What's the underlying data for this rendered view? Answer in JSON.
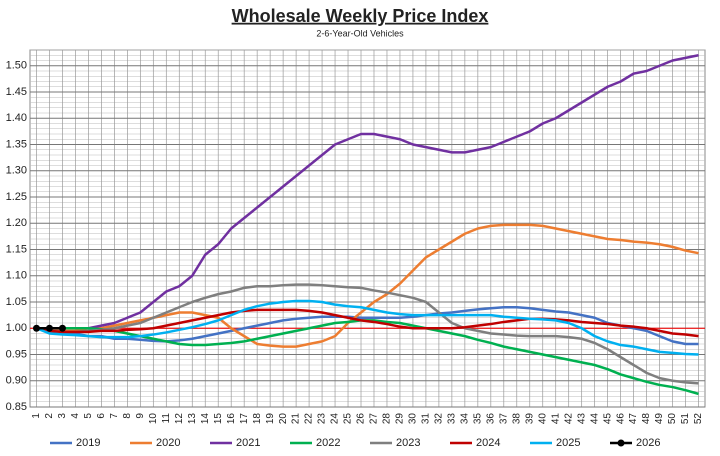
{
  "chart_data": {
    "type": "line",
    "title": "Wholesale Weekly Price Index",
    "subtitle": "2-6-Year-Old Vehicles",
    "x": [
      1,
      2,
      3,
      4,
      5,
      6,
      7,
      8,
      9,
      10,
      11,
      12,
      13,
      14,
      15,
      16,
      17,
      18,
      19,
      20,
      21,
      22,
      23,
      24,
      25,
      26,
      27,
      28,
      29,
      30,
      31,
      32,
      33,
      34,
      35,
      36,
      37,
      38,
      39,
      40,
      41,
      42,
      43,
      44,
      45,
      46,
      47,
      48,
      49,
      50,
      51,
      52
    ],
    "xlim": [
      0.5,
      52.5
    ],
    "xticks": [
      1,
      2,
      3,
      4,
      5,
      6,
      7,
      8,
      9,
      10,
      11,
      12,
      13,
      14,
      15,
      16,
      17,
      18,
      19,
      20,
      21,
      22,
      23,
      24,
      25,
      26,
      27,
      28,
      29,
      30,
      31,
      32,
      33,
      34,
      35,
      36,
      37,
      38,
      39,
      40,
      41,
      42,
      43,
      44,
      45,
      46,
      47,
      48,
      49,
      50,
      51,
      52
    ],
    "ylim": [
      0.85,
      1.53
    ],
    "yticks": [
      {
        "value": 0.85,
        "label": "0.85"
      },
      {
        "value": 0.9,
        "label": "0.90"
      },
      {
        "value": 0.95,
        "label": "0.95"
      },
      {
        "value": 1.0,
        "label": "1.00"
      },
      {
        "value": 1.05,
        "label": "1.05"
      },
      {
        "value": 1.1,
        "label": "1.10"
      },
      {
        "value": 1.15,
        "label": "1.15"
      },
      {
        "value": 1.2,
        "label": "1.20"
      },
      {
        "value": 1.25,
        "label": "1.25"
      },
      {
        "value": 1.3,
        "label": "1.30"
      },
      {
        "value": 1.35,
        "label": "1.35"
      },
      {
        "value": 1.4,
        "label": "1.40"
      },
      {
        "value": 1.45,
        "label": "1.45"
      },
      {
        "value": 1.5,
        "label": "1.50"
      }
    ],
    "minor_grid_step": 0.01,
    "grid": true,
    "legend": "bottom",
    "reference_line": {
      "value": 1.0,
      "color": "#ff0000"
    },
    "series": [
      {
        "name": "2019",
        "color": "#4472c4",
        "values": [
          1.0,
          0.995,
          0.99,
          0.99,
          0.985,
          0.985,
          0.98,
          0.98,
          0.978,
          0.976,
          0.975,
          0.977,
          0.98,
          0.985,
          0.99,
          0.995,
          1.0,
          1.005,
          1.01,
          1.015,
          1.018,
          1.02,
          1.022,
          1.022,
          1.022,
          1.02,
          1.02,
          1.02,
          1.02,
          1.022,
          1.025,
          1.028,
          1.03,
          1.033,
          1.036,
          1.038,
          1.04,
          1.04,
          1.038,
          1.035,
          1.032,
          1.03,
          1.025,
          1.02,
          1.01,
          1.005,
          1.0,
          0.995,
          0.985,
          0.975,
          0.97,
          0.97
        ]
      },
      {
        "name": "2020",
        "color": "#ed7d31",
        "values": [
          1.0,
          0.995,
          0.995,
          0.995,
          1.0,
          1.0,
          1.005,
          1.01,
          1.015,
          1.02,
          1.025,
          1.03,
          1.03,
          1.025,
          1.02,
          1.0,
          0.985,
          0.97,
          0.967,
          0.965,
          0.965,
          0.97,
          0.975,
          0.985,
          1.01,
          1.03,
          1.05,
          1.065,
          1.085,
          1.11,
          1.135,
          1.15,
          1.165,
          1.18,
          1.19,
          1.195,
          1.197,
          1.197,
          1.197,
          1.195,
          1.19,
          1.185,
          1.18,
          1.175,
          1.17,
          1.168,
          1.165,
          1.163,
          1.16,
          1.155,
          1.148,
          1.143
        ]
      },
      {
        "name": "2021",
        "color": "#7030a0",
        "values": [
          1.0,
          1.0,
          1.0,
          1.0,
          1.0,
          1.005,
          1.01,
          1.02,
          1.03,
          1.05,
          1.07,
          1.08,
          1.1,
          1.14,
          1.16,
          1.19,
          1.21,
          1.23,
          1.25,
          1.27,
          1.29,
          1.31,
          1.33,
          1.35,
          1.36,
          1.37,
          1.37,
          1.365,
          1.36,
          1.35,
          1.345,
          1.34,
          1.335,
          1.335,
          1.34,
          1.345,
          1.355,
          1.365,
          1.375,
          1.39,
          1.4,
          1.415,
          1.43,
          1.445,
          1.46,
          1.47,
          1.485,
          1.49,
          1.5,
          1.51,
          1.515,
          1.52
        ]
      },
      {
        "name": "2022",
        "color": "#00b050",
        "values": [
          1.0,
          1.0,
          1.0,
          1.0,
          1.0,
          0.998,
          0.995,
          0.99,
          0.985,
          0.98,
          0.975,
          0.97,
          0.968,
          0.968,
          0.97,
          0.972,
          0.975,
          0.98,
          0.985,
          0.99,
          0.995,
          1.0,
          1.005,
          1.01,
          1.012,
          1.015,
          1.015,
          1.012,
          1.01,
          1.005,
          1.0,
          0.995,
          0.99,
          0.985,
          0.978,
          0.972,
          0.965,
          0.96,
          0.955,
          0.95,
          0.945,
          0.94,
          0.935,
          0.93,
          0.922,
          0.912,
          0.905,
          0.898,
          0.892,
          0.888,
          0.882,
          0.875
        ]
      },
      {
        "name": "2023",
        "color": "#7f7f7f",
        "values": [
          1.0,
          0.995,
          0.993,
          0.993,
          0.995,
          0.997,
          1.0,
          1.005,
          1.01,
          1.02,
          1.03,
          1.04,
          1.05,
          1.058,
          1.065,
          1.07,
          1.077,
          1.08,
          1.08,
          1.082,
          1.083,
          1.083,
          1.082,
          1.08,
          1.078,
          1.077,
          1.072,
          1.068,
          1.063,
          1.058,
          1.05,
          1.03,
          1.01,
          1.0,
          0.995,
          0.99,
          0.988,
          0.986,
          0.985,
          0.985,
          0.985,
          0.983,
          0.98,
          0.972,
          0.96,
          0.945,
          0.93,
          0.915,
          0.905,
          0.9,
          0.897,
          0.895
        ]
      },
      {
        "name": "2024",
        "color": "#c00000",
        "values": [
          1.0,
          0.995,
          0.993,
          0.993,
          0.993,
          0.995,
          0.995,
          0.997,
          0.998,
          1.0,
          1.005,
          1.01,
          1.015,
          1.02,
          1.025,
          1.03,
          1.033,
          1.035,
          1.035,
          1.035,
          1.035,
          1.033,
          1.03,
          1.025,
          1.02,
          1.015,
          1.012,
          1.008,
          1.003,
          1.0,
          1.0,
          1.0,
          1.0,
          1.002,
          1.005,
          1.008,
          1.012,
          1.015,
          1.018,
          1.018,
          1.017,
          1.015,
          1.012,
          1.01,
          1.008,
          1.005,
          1.003,
          1.0,
          0.995,
          0.99,
          0.988,
          0.985
        ]
      },
      {
        "name": "2025",
        "color": "#00b0f0",
        "values": [
          1.0,
          0.99,
          0.988,
          0.987,
          0.985,
          0.983,
          0.983,
          0.983,
          0.985,
          0.988,
          0.992,
          0.997,
          1.002,
          1.008,
          1.015,
          1.025,
          1.035,
          1.042,
          1.047,
          1.05,
          1.052,
          1.052,
          1.05,
          1.045,
          1.042,
          1.04,
          1.035,
          1.03,
          1.027,
          1.025,
          1.025,
          1.025,
          1.025,
          1.025,
          1.025,
          1.025,
          1.022,
          1.02,
          1.018,
          1.017,
          1.015,
          1.01,
          1.0,
          0.985,
          0.975,
          0.968,
          0.965,
          0.96,
          0.955,
          0.953,
          0.951,
          0.95
        ]
      },
      {
        "name": "2026",
        "color": "#000000",
        "markers": true,
        "x": [
          1,
          2,
          3
        ],
        "values": [
          1.0,
          1.0,
          1.0
        ]
      }
    ]
  }
}
